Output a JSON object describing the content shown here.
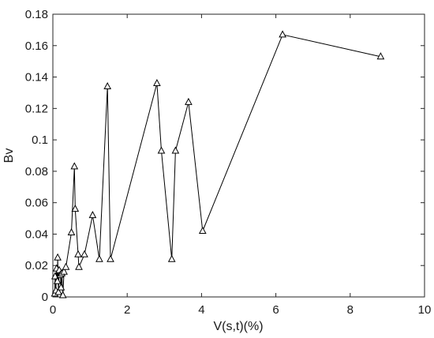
{
  "chart_data": {
    "type": "line",
    "title": "",
    "xlabel": "V(s,t)(%)",
    "ylabel": "Bv",
    "xlim": [
      0,
      10
    ],
    "ylim": [
      0,
      0.18
    ],
    "x_ticks": [
      0,
      2,
      4,
      6,
      8,
      10
    ],
    "x_tick_labels": [
      "0",
      "2",
      "4",
      "6",
      "8",
      "10"
    ],
    "y_ticks": [
      0,
      0.02,
      0.04,
      0.06,
      0.08,
      0.1,
      0.12,
      0.14,
      0.16,
      0.18
    ],
    "y_tick_labels": [
      "0",
      "0.02",
      "0.04",
      "0.06",
      "0.08",
      "0.1",
      "0.12",
      "0.14",
      "0.16",
      "0.18"
    ],
    "grid": false,
    "legend": "none",
    "marker": "triangle",
    "line_color": "#000000",
    "series": [
      {
        "x": [
          0.05,
          0.06,
          0.08,
          0.1,
          0.12,
          0.13,
          0.15,
          0.17,
          0.2,
          0.22,
          0.24,
          0.27,
          0.3,
          0.35,
          0.5,
          0.58,
          0.6,
          0.68,
          0.7,
          0.85,
          1.07,
          1.25,
          1.47,
          1.55,
          2.8,
          2.92,
          3.2,
          3.3,
          3.65,
          4.03,
          6.18,
          8.82
        ],
        "y": [
          0.002,
          0.013,
          0.004,
          0.018,
          0.01,
          0.025,
          0.003,
          0.017,
          0.014,
          0.006,
          0.015,
          0.001,
          0.016,
          0.019,
          0.041,
          0.083,
          0.056,
          0.027,
          0.019,
          0.027,
          0.052,
          0.024,
          0.134,
          0.024,
          0.136,
          0.093,
          0.024,
          0.093,
          0.124,
          0.042,
          0.167,
          0.153
        ]
      }
    ]
  }
}
